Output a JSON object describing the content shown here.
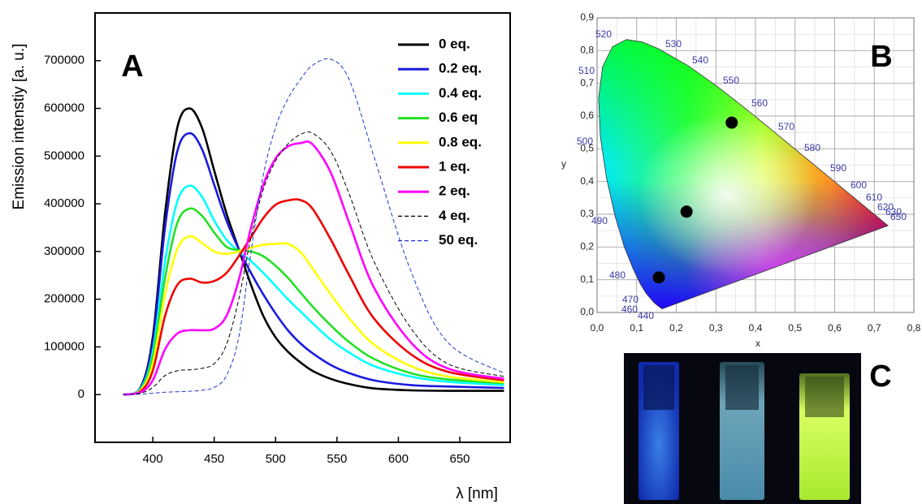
{
  "chart_data": [
    {
      "type": "line",
      "panel_label": "A",
      "x_label": "λ [nm]",
      "y_label": "Emission intenstiy [a. u.]",
      "x": [
        376,
        390,
        400,
        410,
        420,
        430,
        440,
        450,
        460,
        470,
        480,
        490,
        500,
        510,
        520,
        530,
        545,
        560,
        580,
        610,
        640,
        686
      ],
      "series": [
        {
          "name": "0 eq.",
          "color": "#000000",
          "linestyle": "solid",
          "values": [
            0,
            15000,
            120000,
            380000,
            560000,
            600000,
            560000,
            470000,
            380000,
            305000,
            230000,
            165000,
            120000,
            90000,
            68000,
            50000,
            33000,
            22000,
            13000,
            9000,
            8000,
            8000
          ]
        },
        {
          "name": "0.2 eq.",
          "color": "#1a1ae0",
          "linestyle": "solid",
          "values": [
            0,
            14000,
            110000,
            350000,
            510000,
            548000,
            515000,
            440000,
            365000,
            305000,
            255000,
            210000,
            170000,
            135000,
            108000,
            87000,
            62000,
            45000,
            30000,
            20000,
            17000,
            14000
          ]
        },
        {
          "name": "0.4 eq.",
          "color": "#00ffff",
          "linestyle": "solid",
          "values": [
            0,
            12000,
            90000,
            280000,
            405000,
            438000,
            415000,
            365000,
            325000,
            300000,
            280000,
            255000,
            228000,
            200000,
            175000,
            150000,
            115000,
            88000,
            60000,
            38000,
            27000,
            20000
          ]
        },
        {
          "name": "0.6 eq",
          "color": "#22e022",
          "linestyle": "solid",
          "values": [
            0,
            10000,
            80000,
            245000,
            360000,
            390000,
            375000,
            340000,
            310000,
            303000,
            300000,
            290000,
            270000,
            245000,
            215000,
            185000,
            145000,
            110000,
            75000,
            45000,
            32000,
            24000
          ]
        },
        {
          "name": "0.8 eq.",
          "color": "#ffff00",
          "linestyle": "solid",
          "values": [
            0,
            9000,
            65000,
            210000,
            305000,
            332000,
            318000,
            300000,
            295000,
            300000,
            308000,
            314000,
            316000,
            316000,
            300000,
            265000,
            210000,
            160000,
            105000,
            60000,
            38000,
            26000
          ]
        },
        {
          "name": "1 eq.",
          "color": "#ee0000",
          "linestyle": "solid",
          "values": [
            0,
            7000,
            50000,
            165000,
            230000,
            243000,
            235000,
            238000,
            255000,
            290000,
            330000,
            370000,
            398000,
            407000,
            408000,
            390000,
            325000,
            250000,
            160000,
            85000,
            48000,
            30000
          ]
        },
        {
          "name": "2 eq.",
          "color": "#ff00ff",
          "linestyle": "solid",
          "values": [
            0,
            5000,
            30000,
            95000,
            128000,
            135000,
            135000,
            138000,
            165000,
            240000,
            350000,
            440000,
            495000,
            520000,
            527000,
            525000,
            465000,
            360000,
            225000,
            110000,
            55000,
            33000
          ]
        },
        {
          "name": "4 eq.",
          "color": "#000000",
          "linestyle": "dashed",
          "values": [
            0,
            3000,
            15000,
            40000,
            50000,
            52000,
            55000,
            65000,
            105000,
            200000,
            330000,
            430000,
            490000,
            525000,
            545000,
            548000,
            510000,
            420000,
            280000,
            140000,
            65000,
            38000
          ]
        },
        {
          "name": "50 eq.",
          "color": "#2233cc",
          "linestyle": "dashed",
          "values": [
            0,
            1000,
            3000,
            5000,
            6000,
            7000,
            9000,
            15000,
            40000,
            120000,
            300000,
            460000,
            560000,
            620000,
            660000,
            690000,
            703000,
            660000,
            500000,
            260000,
            110000,
            45000
          ]
        }
      ],
      "xlim": [
        353,
        691
      ],
      "xticks": [
        400,
        450,
        500,
        550,
        600,
        650
      ],
      "ylim": [
        -100000,
        800000
      ],
      "yticks": [
        0,
        100000,
        200000,
        300000,
        400000,
        500000,
        600000,
        700000
      ],
      "legend": "upper right",
      "grid": false
    },
    {
      "type": "scatter",
      "panel_label": "B",
      "x_label": "x",
      "y_label": "y",
      "x": [
        0.34,
        0.226,
        0.156
      ],
      "values": [
        0.58,
        0.308,
        0.107
      ],
      "color": "#000000",
      "xlim": [
        0,
        0.8
      ],
      "ylim": [
        0,
        0.9
      ],
      "xticks": [
        {
          "value": 0,
          "label": "0,0"
        },
        {
          "value": 0.1,
          "label": "0,1"
        },
        {
          "value": 0.2,
          "label": "0,2"
        },
        {
          "value": 0.3,
          "label": "0,3"
        },
        {
          "value": 0.4,
          "label": "0,4"
        },
        {
          "value": 0.5,
          "label": "0,5"
        },
        {
          "value": 0.6,
          "label": "0,6"
        },
        {
          "value": 0.7,
          "label": "0,7"
        },
        {
          "value": 0.8,
          "label": "0,8"
        }
      ],
      "yticks": [
        {
          "value": 0,
          "label": "0,0"
        },
        {
          "value": 0.1,
          "label": "0,1"
        },
        {
          "value": 0.2,
          "label": "0,2"
        },
        {
          "value": 0.3,
          "label": "0,3"
        },
        {
          "value": 0.4,
          "label": "0,4"
        },
        {
          "value": 0.5,
          "label": "0,5"
        },
        {
          "value": 0.6,
          "label": "0,6"
        },
        {
          "value": 0.7,
          "label": "0,7"
        },
        {
          "value": 0.8,
          "label": "0,8"
        },
        {
          "value": 0.9,
          "label": "0,9"
        }
      ],
      "grid": true,
      "locus_labels": [
        "440",
        "460",
        "470",
        "480",
        "490",
        "500",
        "510",
        "520",
        "530",
        "540",
        "550",
        "560",
        "570",
        "580",
        "590",
        "600",
        "610",
        "620",
        "630",
        "650"
      ]
    }
  ],
  "photo": {
    "panel_label": "C"
  }
}
